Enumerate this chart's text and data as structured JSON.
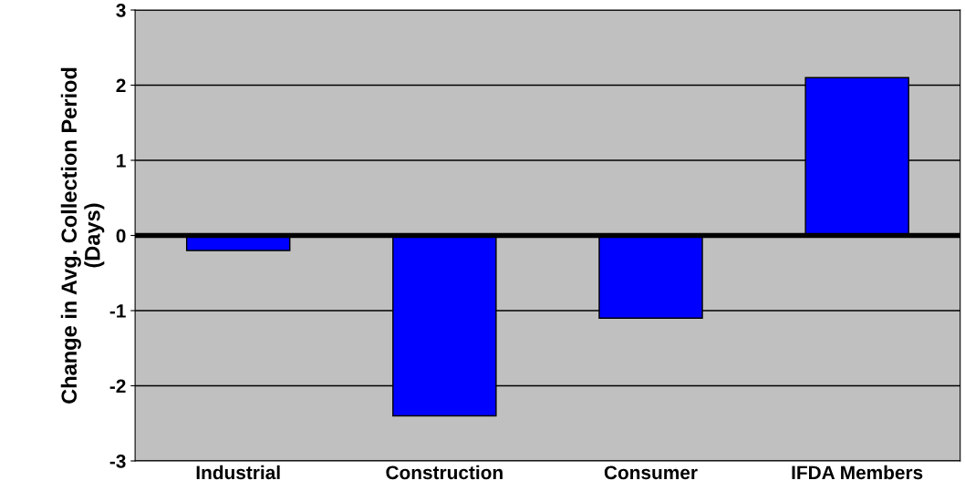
{
  "chart_data": {
    "type": "bar",
    "ylabel": "Change in Avg. Collection Period\n(Days)",
    "categories": [
      "Industrial",
      "Construction",
      "Consumer",
      "IFDA Members"
    ],
    "values": [
      -0.2,
      -2.4,
      -1.1,
      2.1
    ],
    "color": "#0000ff",
    "ylim": [
      -3,
      3
    ],
    "yticks": [
      -3,
      -2,
      -1,
      0,
      1,
      2,
      3
    ],
    "grid": "y",
    "legend": false
  }
}
